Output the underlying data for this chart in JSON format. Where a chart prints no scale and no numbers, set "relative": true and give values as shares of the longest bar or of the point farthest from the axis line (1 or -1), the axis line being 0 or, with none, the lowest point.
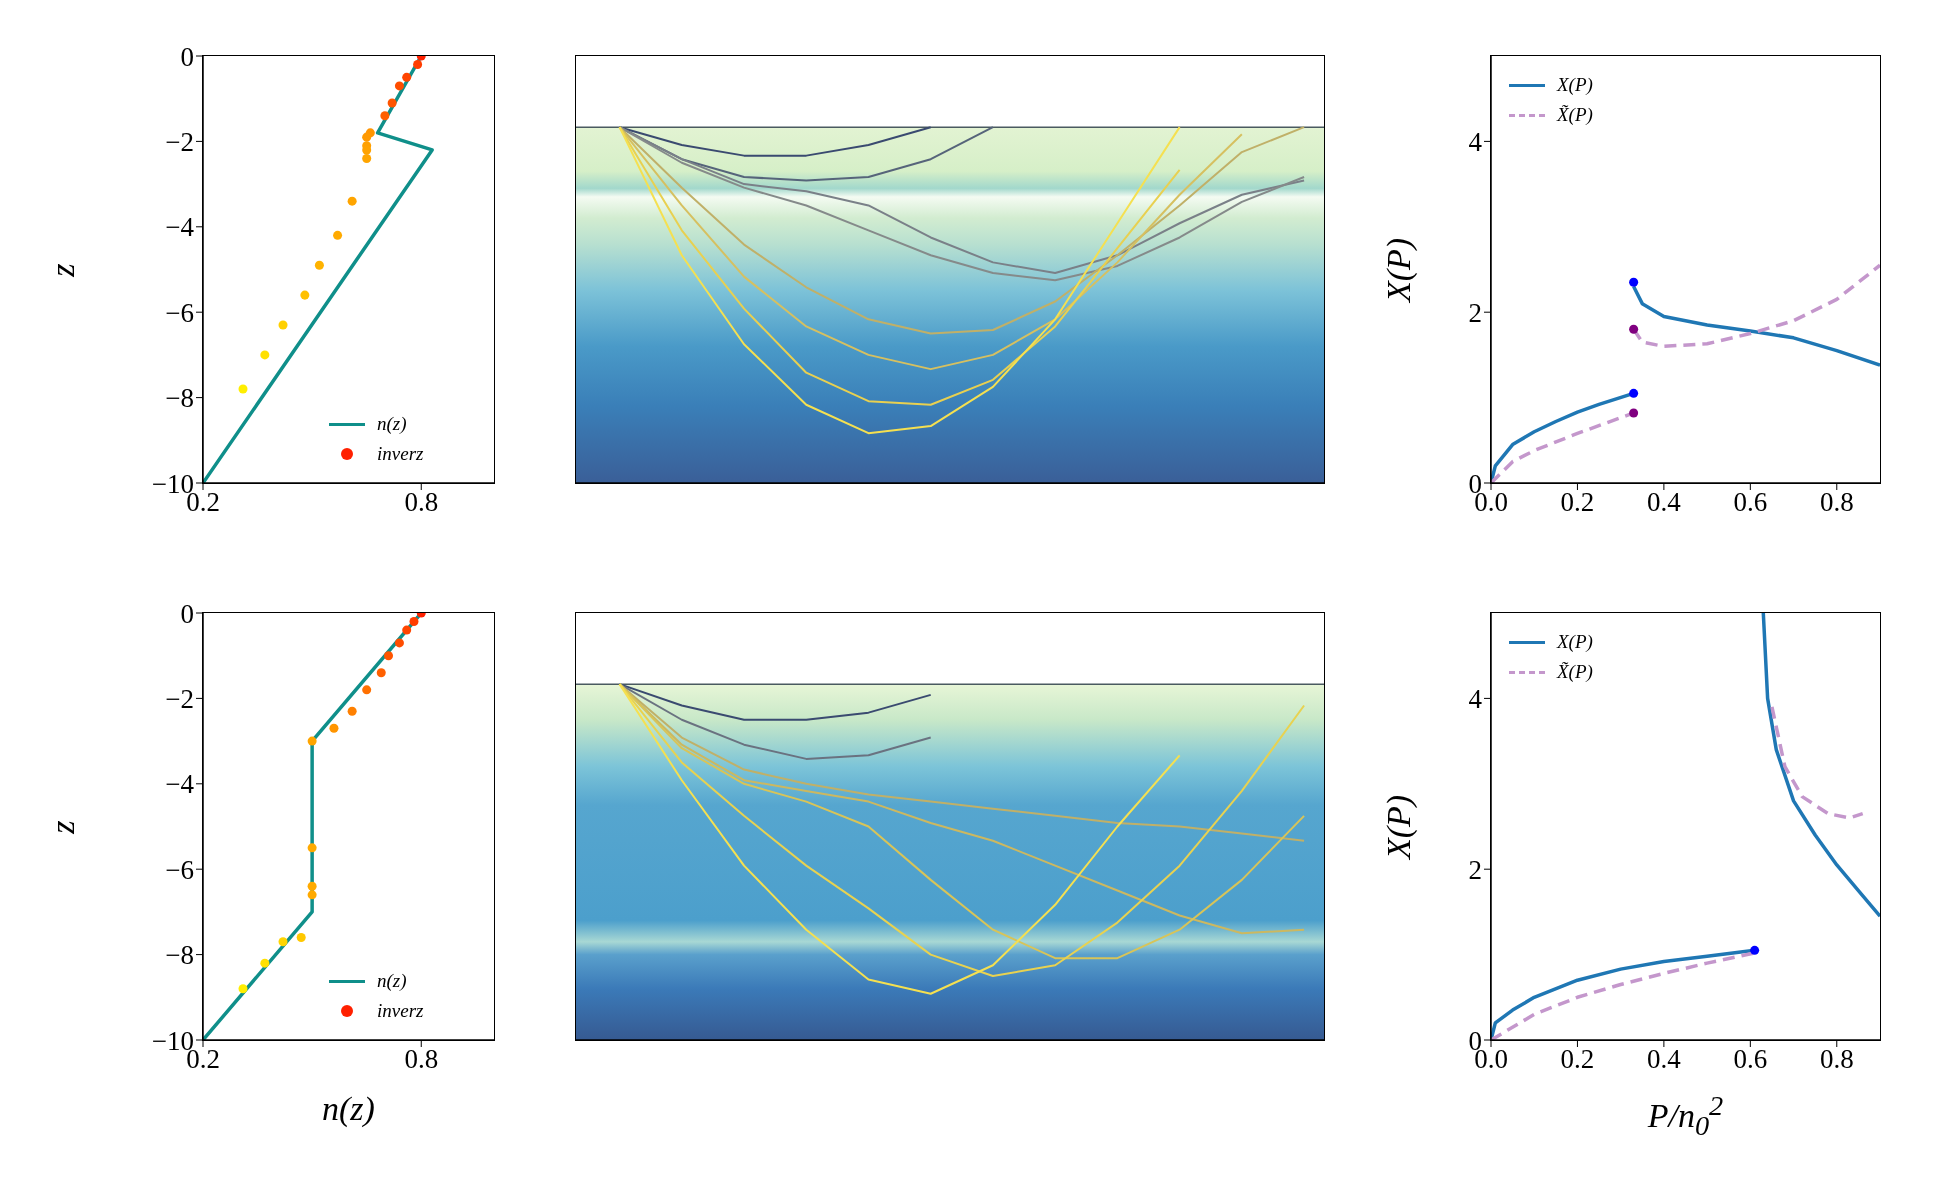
{
  "chart_data": [
    {
      "type": "line",
      "ylabel": "z",
      "xlim": [
        0.2,
        1.0
      ],
      "xticks": [
        0.2,
        0.8
      ],
      "ylim": [
        -10,
        0
      ],
      "yticks": [
        0,
        -2,
        -4,
        -6,
        -8,
        -10
      ],
      "legend": "bottom right",
      "series": [
        {
          "name": "n(z)",
          "color": "#0f8f8a",
          "x": [
            0.8,
            0.68,
            0.83,
            0.2
          ],
          "values": [
            0,
            -1.8,
            -2.2,
            -10
          ]
        },
        {
          "name": "inverz",
          "type": "scatter",
          "color": "#ff2000",
          "colors": [
            "#ff2000",
            "#ff3d00",
            "#ff4500",
            "#ff4d00",
            "#ff5500",
            "#ff6000",
            "#ff9500",
            "#ff9900",
            "#ffa000",
            "#ffa200",
            "#ffa500",
            "#ffa500",
            "#ffaa00",
            "#ffb300",
            "#ffc000",
            "#ffd000",
            "#ffe000",
            "#ffee00"
          ],
          "x": [
            0.8,
            0.79,
            0.76,
            0.74,
            0.72,
            0.7,
            0.66,
            0.65,
            0.65,
            0.65,
            0.65,
            0.61,
            0.57,
            0.52,
            0.48,
            0.42,
            0.37,
            0.31
          ],
          "values": [
            0,
            -0.2,
            -0.5,
            -0.7,
            -1.1,
            -1.4,
            -1.8,
            -1.9,
            -2.1,
            -2.2,
            -2.4,
            -3.4,
            -4.2,
            -4.9,
            -5.6,
            -6.3,
            -7.0,
            -7.8
          ]
        }
      ]
    },
    {
      "type": "line",
      "relative": true,
      "tick_labels": false,
      "categories": [
        null,
        null,
        null,
        null,
        null,
        null,
        null,
        null,
        null,
        null,
        null,
        null
      ],
      "ref_lines": [
        {
          "axis": "y",
          "value": 1,
          "color": "#4a5a60"
        }
      ],
      "series": [
        {
          "color": "#3a4a70",
          "values": [
            1,
            0.95,
            0.92,
            0.92,
            0.95,
            1,
            null,
            null,
            null,
            null,
            null,
            null
          ]
        },
        {
          "color": "#56647a",
          "values": [
            1,
            0.91,
            0.86,
            0.85,
            0.86,
            0.91,
            1,
            null,
            null,
            null,
            null,
            null
          ]
        },
        {
          "color": "#7a8088",
          "values": [
            1,
            0.91,
            0.84,
            0.82,
            0.78,
            0.69,
            0.62,
            0.59,
            0.64,
            0.73,
            0.81,
            0.85
          ]
        },
        {
          "color": "#858a8a",
          "values": [
            1,
            0.9,
            0.83,
            0.78,
            0.71,
            0.64,
            0.59,
            0.57,
            0.61,
            0.69,
            0.79,
            0.86
          ]
        },
        {
          "color": "#c0b068",
          "values": [
            1,
            0.83,
            0.67,
            0.55,
            0.46,
            0.42,
            0.43,
            0.51,
            0.64,
            0.78,
            0.93,
            1
          ]
        },
        {
          "color": "#d6c060",
          "values": [
            1,
            0.78,
            0.58,
            0.44,
            0.36,
            0.32,
            0.36,
            0.46,
            0.62,
            0.81,
            0.98,
            null
          ]
        },
        {
          "color": "#e8d050",
          "values": [
            1,
            0.71,
            0.49,
            0.31,
            0.23,
            0.22,
            0.29,
            0.44,
            0.66,
            0.88,
            null,
            null
          ]
        },
        {
          "color": "#f5e050",
          "values": [
            1,
            0.64,
            0.39,
            0.22,
            0.14,
            0.16,
            0.27,
            0.46,
            0.73,
            1,
            null,
            null
          ]
        }
      ]
    },
    {
      "type": "line",
      "ylabel": "X(P)",
      "xlim": [
        0,
        0.9
      ],
      "xticks": [
        {
          "value": 0,
          "label": "0.0"
        },
        0.2,
        0.4,
        0.6,
        0.8
      ],
      "ylim": [
        0,
        5
      ],
      "yticks": [
        0,
        2,
        4
      ],
      "legend": "top left",
      "series": [
        {
          "name": "X(P)",
          "color": "#1f77b4",
          "line_style": "solid",
          "x": [
            0,
            0.01,
            0.05,
            0.1,
            0.15,
            0.2,
            0.25,
            0.33
          ],
          "values": [
            0,
            0.2,
            0.45,
            0.6,
            0.72,
            0.83,
            0.92,
            1.05
          ]
        },
        {
          "color": "#1f77b4",
          "line_style": "solid",
          "x": [
            0.33,
            0.35,
            0.4,
            0.5,
            0.6,
            0.7,
            0.8,
            0.9
          ],
          "values": [
            2.3,
            2.1,
            1.95,
            1.85,
            1.78,
            1.7,
            1.55,
            1.38
          ]
        },
        {
          "name": "X̃(P)",
          "color": "#c497cc",
          "line_style": "dashed",
          "x": [
            0,
            0.05,
            0.1,
            0.2,
            0.33
          ],
          "values": [
            0,
            0.25,
            0.38,
            0.58,
            0.82
          ]
        },
        {
          "color": "#c497cc",
          "line_style": "dashed",
          "x": [
            0.33,
            0.35,
            0.4,
            0.5,
            0.6,
            0.7,
            0.8,
            0.9
          ],
          "values": [
            1.8,
            1.65,
            1.6,
            1.63,
            1.75,
            1.9,
            2.15,
            2.55
          ]
        },
        {
          "type": "scatter",
          "color": "#0000ff",
          "x": [
            0.33,
            0.33
          ],
          "values": [
            2.35,
            1.05
          ]
        },
        {
          "type": "scatter",
          "color": "#800080",
          "x": [
            0.33,
            0.33
          ],
          "values": [
            1.8,
            0.82
          ]
        }
      ]
    },
    {
      "type": "line",
      "xlabel": "n(z)",
      "ylabel": "z",
      "xlim": [
        0.2,
        1.0
      ],
      "xticks": [
        0.2,
        0.8
      ],
      "ylim": [
        -10,
        0
      ],
      "yticks": [
        0,
        -2,
        -4,
        -6,
        -8,
        -10
      ],
      "legend": "bottom right",
      "series": [
        {
          "name": "n(z)",
          "color": "#0f8f8a",
          "x": [
            0.2,
            0.5,
            0.5,
            0.8
          ],
          "values": [
            -10,
            -7,
            -3,
            0
          ]
        },
        {
          "name": "inverz",
          "type": "scatter",
          "color": "#ff2000",
          "colors": [
            "#ff2000",
            "#ff3d00",
            "#ff4500",
            "#ff4d00",
            "#ff5500",
            "#ff6000",
            "#ff7000",
            "#ff8000",
            "#ff9500",
            "#ffa500",
            "#ffaa00",
            "#ffaa00",
            "#ffaa00",
            "#ffc800",
            "#ffd500",
            "#ffe000",
            "#ffee00"
          ],
          "x": [
            0.8,
            0.78,
            0.76,
            0.74,
            0.71,
            0.69,
            0.65,
            0.61,
            0.56,
            0.5,
            0.5,
            0.5,
            0.5,
            0.47,
            0.42,
            0.37,
            0.31
          ],
          "values": [
            0,
            -0.2,
            -0.4,
            -0.7,
            -1.0,
            -1.4,
            -1.8,
            -2.3,
            -2.7,
            -3.0,
            -5.5,
            -6.4,
            -6.6,
            -7.6,
            -7.7,
            -8.2,
            -8.8
          ]
        }
      ]
    },
    {
      "type": "line",
      "relative": true,
      "tick_labels": false,
      "categories": [
        null,
        null,
        null,
        null,
        null,
        null,
        null,
        null,
        null,
        null,
        null,
        null
      ],
      "ref_lines": [
        {
          "axis": "y",
          "value": 1,
          "color": "#4a5a60"
        }
      ],
      "series": [
        {
          "color": "#3a4a70",
          "values": [
            1,
            0.94,
            0.9,
            0.9,
            0.92,
            0.97,
            null,
            null,
            null,
            null,
            null,
            null
          ]
        },
        {
          "color": "#6a7280",
          "values": [
            1,
            0.9,
            0.83,
            0.79,
            0.8,
            0.85,
            null,
            null,
            null,
            null,
            null,
            null
          ]
        },
        {
          "color": "#c0b068",
          "values": [
            1,
            0.85,
            0.76,
            0.72,
            0.69,
            0.67,
            0.65,
            0.63,
            0.61,
            0.6,
            0.58,
            0.56
          ]
        },
        {
          "color": "#ccb860",
          "values": [
            1,
            0.83,
            0.73,
            0.7,
            0.67,
            0.61,
            0.56,
            0.49,
            0.42,
            0.35,
            0.3,
            0.31
          ]
        },
        {
          "color": "#d8c458",
          "values": [
            1,
            0.82,
            0.72,
            0.67,
            0.6,
            0.45,
            0.31,
            0.23,
            0.23,
            0.31,
            0.45,
            0.63
          ]
        },
        {
          "color": "#e8d250",
          "values": [
            1,
            0.78,
            0.63,
            0.49,
            0.37,
            0.24,
            0.18,
            0.21,
            0.33,
            0.49,
            0.7,
            0.94
          ]
        },
        {
          "color": "#f5e050",
          "values": [
            1,
            0.73,
            0.49,
            0.31,
            0.17,
            0.13,
            0.21,
            0.38,
            0.6,
            0.8,
            null,
            null
          ]
        }
      ]
    },
    {
      "type": "line",
      "xlabel": "P/n$_{0}$$^{2}$",
      "ylabel": "X(P)",
      "xlim": [
        0,
        0.9
      ],
      "xticks": [
        {
          "value": 0,
          "label": "0.0"
        },
        0.2,
        0.4,
        0.6,
        0.8
      ],
      "ylim": [
        0,
        5
      ],
      "yticks": [
        0,
        2,
        4
      ],
      "legend": "top left",
      "series": [
        {
          "name": "X(P)",
          "color": "#1f77b4",
          "line_style": "solid",
          "x": [
            0,
            0.01,
            0.05,
            0.1,
            0.2,
            0.3,
            0.4,
            0.5,
            0.61
          ],
          "values": [
            0,
            0.2,
            0.35,
            0.5,
            0.7,
            0.83,
            0.92,
            0.98,
            1.05
          ]
        },
        {
          "color": "#1f77b4",
          "line_style": "solid",
          "x": [
            0.63,
            0.64,
            0.66,
            0.7,
            0.75,
            0.8,
            0.85,
            0.9
          ],
          "values": [
            5.0,
            4.0,
            3.4,
            2.8,
            2.4,
            2.05,
            1.75,
            1.45
          ]
        },
        {
          "name": "X̃(P)",
          "color": "#c497cc",
          "line_style": "dashed",
          "x": [
            0,
            0.1,
            0.2,
            0.3,
            0.4,
            0.5,
            0.61
          ],
          "values": [
            0,
            0.3,
            0.5,
            0.65,
            0.78,
            0.9,
            1.02
          ]
        },
        {
          "color": "#c497cc",
          "line_style": "dashed",
          "x": [
            0.65,
            0.68,
            0.72,
            0.78,
            0.83,
            0.86
          ],
          "values": [
            3.9,
            3.2,
            2.85,
            2.65,
            2.6,
            2.65
          ]
        },
        {
          "type": "scatter",
          "color": "#0000ff",
          "x": [
            0.61
          ],
          "values": [
            1.05
          ]
        }
      ]
    }
  ]
}
